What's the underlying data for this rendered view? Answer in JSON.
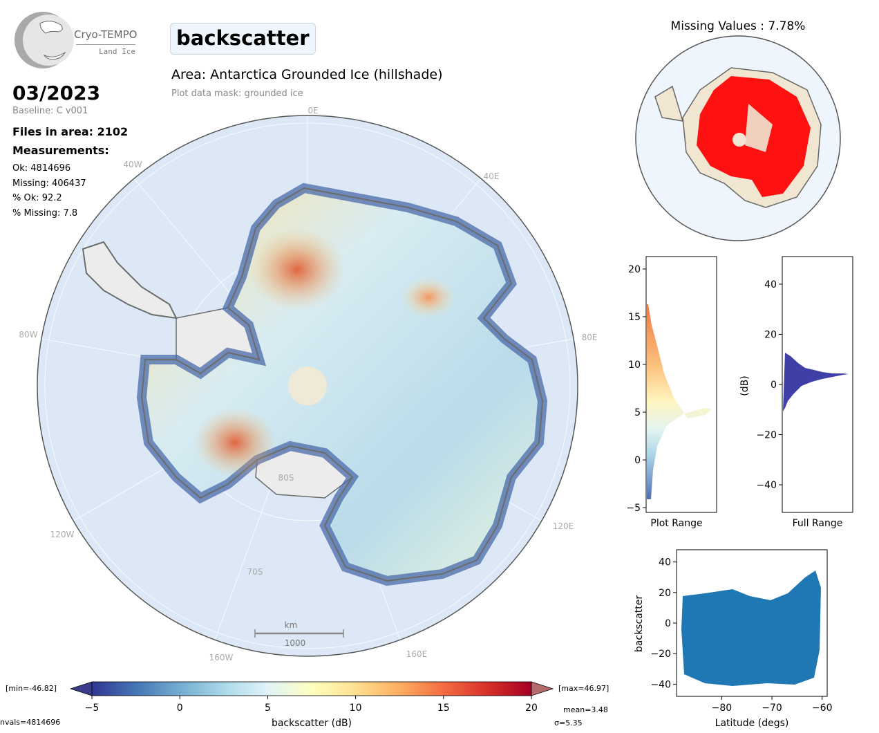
{
  "header": {
    "parameter": "backscatter",
    "area_title": "Area: Antarctica Grounded Ice (hillshade)",
    "mask_note": "Plot data mask: grounded ice",
    "month": "03/2023",
    "baseline": "Baseline: C v001",
    "files": "Files in area: 2102",
    "measurements_heading": "Measurements:",
    "ok": "Ok: 4814696",
    "missing": "Missing: 406437",
    "pct_ok": "% Ok: 92.2",
    "pct_missing": "% Missing: 7.8"
  },
  "logo": {
    "name": "Cryo-TEMPO",
    "sub": "Land Ice"
  },
  "map": {
    "lon_labels": [
      "0E",
      "40E",
      "80E",
      "120E",
      "160E",
      "160W",
      "120W",
      "80W",
      "40W"
    ],
    "lat_labels": [
      "80S",
      "70S"
    ],
    "scalebar_unit": "km",
    "scalebar_value": "1000",
    "colors": {
      "ocean": "#dce8f5",
      "ice_shelf": "#ececec",
      "coast": "#6b6b6b"
    }
  },
  "missing_map": {
    "title": "Missing Values : 7.78%",
    "missing_color": "#ff0000",
    "ok_color": "#f0e6d2"
  },
  "hist_plot": {
    "xlabel": "Plot Range",
    "yticks": [
      -5,
      0,
      5,
      10,
      15,
      20
    ],
    "ylim": [
      -5.5,
      21.3
    ]
  },
  "hist_full": {
    "xlabel": "Full Range",
    "ylabel": "(dB)",
    "yticks": [
      -40,
      -20,
      0,
      20,
      40
    ],
    "ylim": [
      -51,
      51
    ],
    "bar_color": "#3f3fa8"
  },
  "scatter": {
    "xlabel": "Latitude (degs)",
    "ylabel": "backscatter",
    "xticks": [
      -80,
      -70,
      -60
    ],
    "yticks": [
      -40,
      -20,
      0,
      20,
      40
    ],
    "xlim": [
      -89,
      -59
    ],
    "ylim": [
      -48,
      48
    ],
    "color": "#1f77b4"
  },
  "colorbar": {
    "label": "backscatter (dB)",
    "ticks": [
      -5,
      0,
      5,
      10,
      15,
      20
    ],
    "range": [
      -5,
      20
    ],
    "min_text": "[min=-46.82]",
    "max_text": "[max=46.97]",
    "mean_text": "mean=3.48",
    "sigma_text": "σ=5.35",
    "nvals_text": "nvals=4814696",
    "cmap": [
      "#313695",
      "#4575b4",
      "#74add1",
      "#abd9e9",
      "#e0f3f8",
      "#ffffbf",
      "#fee090",
      "#fdae61",
      "#f46d43",
      "#d73027",
      "#a50026"
    ]
  }
}
